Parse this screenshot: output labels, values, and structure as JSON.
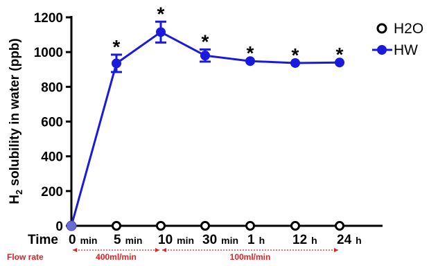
{
  "chart_data": {
    "type": "line",
    "x_axis_title": "Time",
    "x_ticks": [
      {
        "num": "0",
        "unit": "min"
      },
      {
        "num": "5",
        "unit": "min"
      },
      {
        "num": "10",
        "unit": "min"
      },
      {
        "num": "30",
        "unit": "min"
      },
      {
        "num": "1",
        "unit": "h"
      },
      {
        "num": "12",
        "unit": "h"
      },
      {
        "num": "24",
        "unit": "h"
      }
    ],
    "ylabel_main": "H",
    "ylabel_sub": "2",
    "ylabel_rest": " solubility in water (ppb)",
    "ylim": [
      0,
      1200
    ],
    "y_ticks": [
      "0",
      "200",
      "400",
      "600",
      "800",
      "1000",
      "1200"
    ],
    "y_tick_values": [
      0,
      200,
      400,
      600,
      800,
      1000,
      1200
    ],
    "series": [
      {
        "name": "H2O",
        "color": "#000000",
        "marker": "open-circle",
        "values": [
          0,
          0,
          0,
          0,
          0,
          0,
          0
        ]
      },
      {
        "name": "HW",
        "color": "#1a1adc",
        "marker": "filled-circle",
        "values": [
          0,
          935,
          1115,
          980,
          948,
          937,
          940
        ],
        "errors": [
          0,
          50,
          60,
          35,
          0,
          0,
          0
        ]
      }
    ],
    "significance_marker": "*",
    "significant_points": [
      1,
      2,
      3,
      4,
      5,
      6
    ],
    "legend_position": "top-right",
    "flow_rate": {
      "label": "Flow rate",
      "segments": [
        {
          "from": 0,
          "to": 2,
          "label": "400ml/min"
        },
        {
          "from": 2,
          "to": 6,
          "label": "100ml/min"
        }
      ]
    }
  }
}
